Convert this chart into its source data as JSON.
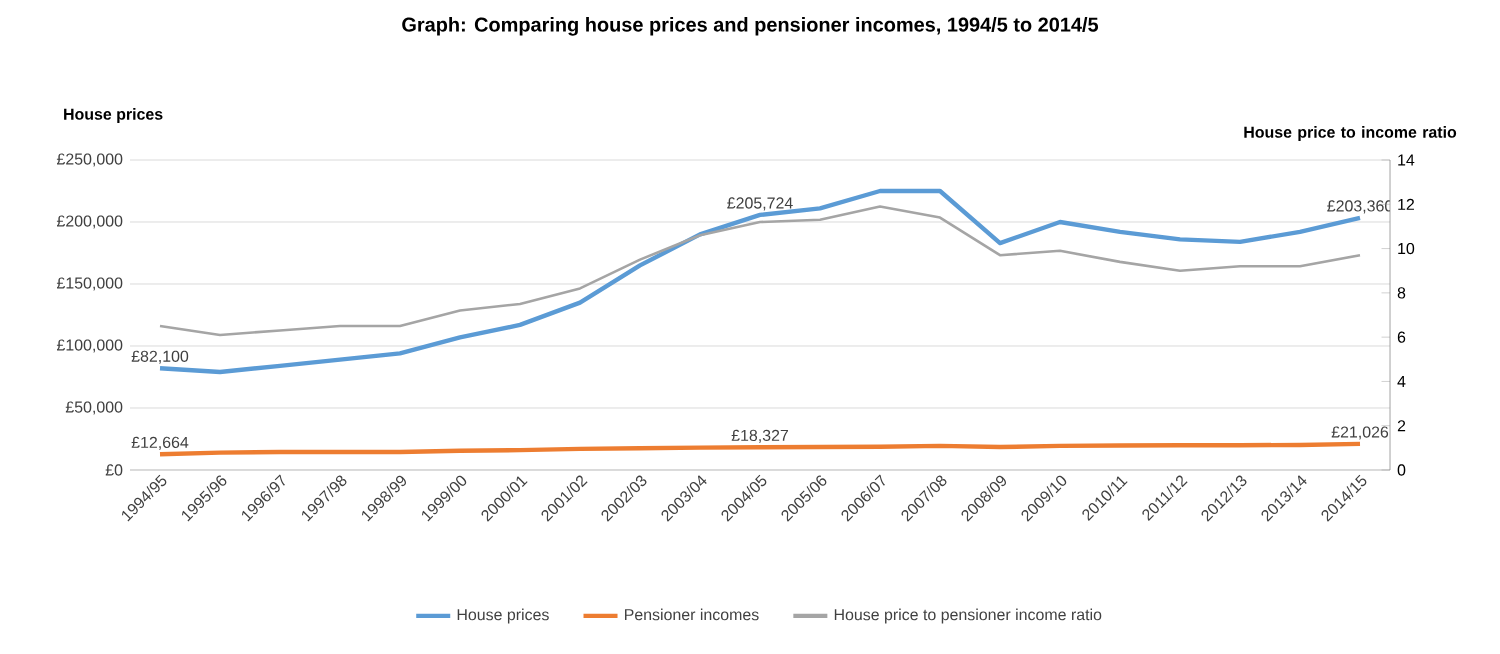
{
  "chart_data": {
    "type": "line",
    "title": "Graph: Comparing house prices and pensioner incomes, 1994/5 to 2014/5",
    "ylabel": "House prices",
    "y2label": "House price to income ratio",
    "categories": [
      "1994/95",
      "1995/96",
      "1996/97",
      "1997/98",
      "1998/99",
      "1999/00",
      "2000/01",
      "2001/02",
      "2002/03",
      "2003/04",
      "2004/05",
      "2005/06",
      "2006/07",
      "2007/08",
      "2008/09",
      "2009/10",
      "2010/11",
      "2011/12",
      "2012/13",
      "2013/14",
      "2014/15"
    ],
    "series": [
      {
        "name": "House prices",
        "color": "#5b9bd5",
        "values": [
          82100,
          79000,
          84000,
          89000,
          94000,
          107000,
          117000,
          135000,
          165000,
          190000,
          205724,
          211000,
          225000,
          225000,
          183000,
          200000,
          192000,
          186000,
          184000,
          192000,
          203360
        ]
      },
      {
        "name": "Pensioner incomes",
        "color": "#ed7d31",
        "values": [
          12664,
          14000,
          14500,
          14500,
          14500,
          15500,
          16000,
          17000,
          17500,
          18000,
          18327,
          18500,
          18800,
          19500,
          18500,
          19500,
          19800,
          20000,
          20000,
          20200,
          21026
        ]
      },
      {
        "name": "House price to pensioner income ratio",
        "color": "#a5a5a5",
        "axis": "y2",
        "values": [
          6.5,
          6.1,
          6.3,
          6.5,
          6.5,
          7.2,
          7.5,
          8.2,
          9.5,
          10.6,
          11.2,
          11.3,
          11.9,
          11.4,
          9.7,
          9.9,
          9.4,
          9.0,
          9.2,
          9.2,
          9.7
        ]
      }
    ],
    "ylim": [
      0,
      250000
    ],
    "yticks": [
      {
        "value": 0,
        "label": "£0"
      },
      {
        "value": 50000,
        "label": "£50,000"
      },
      {
        "value": 100000,
        "label": "£100,000"
      },
      {
        "value": 150000,
        "label": "£150,000"
      },
      {
        "value": 200000,
        "label": "£200,000"
      },
      {
        "value": 250000,
        "label": "£250,000"
      }
    ],
    "y2lim": [
      0,
      14
    ],
    "y2ticks": [
      0,
      2,
      4,
      6,
      8,
      10,
      12,
      14
    ],
    "grid": "y",
    "legend": "bottom",
    "annotations": [
      {
        "text": "£82,100",
        "x": "1994/95",
        "y": 82100
      },
      {
        "text": "£205,724",
        "x": "2004/05",
        "y": 205724
      },
      {
        "text": "£203,360",
        "x": "2014/15",
        "y": 203360
      },
      {
        "text": "£12,664",
        "x": "1994/95",
        "y": 12664
      },
      {
        "text": "£18,327",
        "x": "2004/05",
        "y": 18327
      },
      {
        "text": "£21,026",
        "x": "2014/15",
        "y": 21026
      }
    ]
  }
}
